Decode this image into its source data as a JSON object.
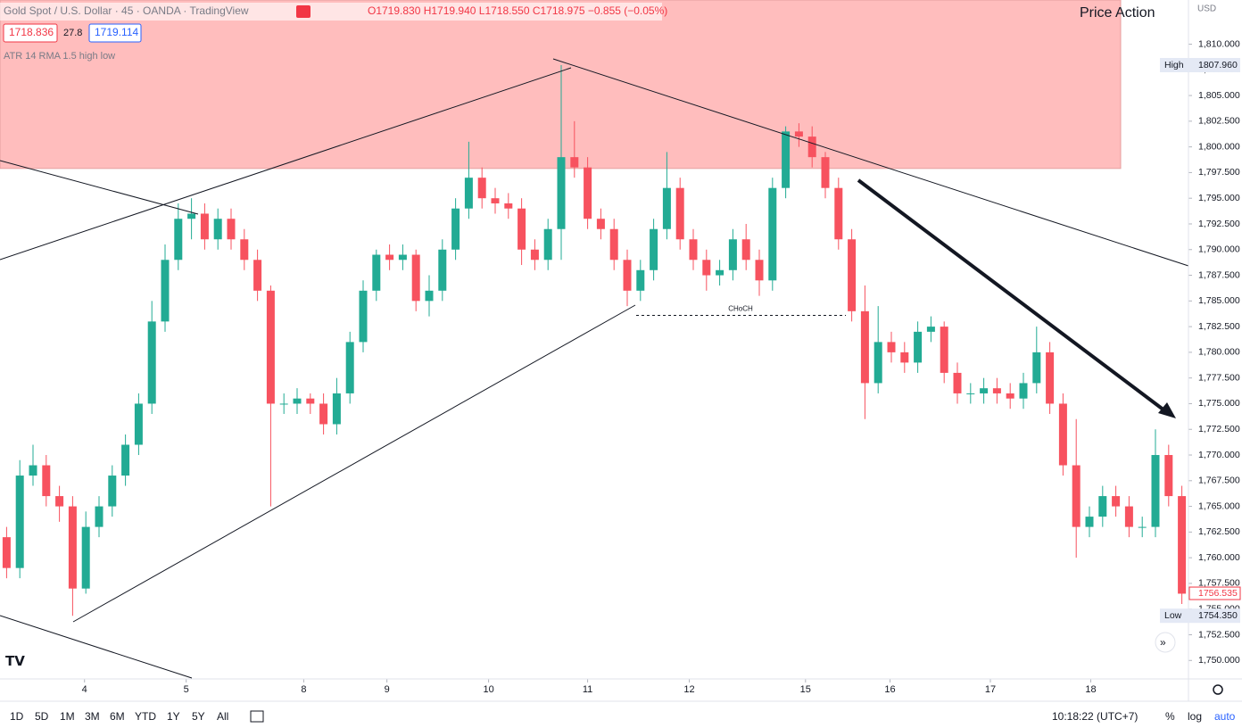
{
  "header": {
    "symbol": "Gold Spot / U.S. Dollar · 45 · OANDA · TradingView",
    "ohlc": "O1719.830 H1719.940 L1718.550 C1718.975 −0.855 (−0.05%)",
    "bid": "1718.836",
    "spread": "27.8",
    "ask": "1719.114",
    "indicator": "ATR 14 RMA 1.5 high low"
  },
  "chart_data": {
    "type": "candlestick",
    "title": "Price Action",
    "currency": "USD",
    "up_color": "#22ab94",
    "down_color": "#f7525f",
    "zone_color": "#ffbdbd",
    "open": [
      1762,
      1759,
      1768,
      1769,
      1766,
      1765,
      1757,
      1763,
      1765,
      1768,
      1771,
      1775,
      1783,
      1789,
      1793,
      1793.5,
      1791,
      1793,
      1791,
      1789,
      1786,
      1775,
      1775,
      1775.5,
      1775,
      1773,
      1776,
      1781,
      1786,
      1789.5,
      1789,
      1789.5,
      1785,
      1786,
      1790,
      1794,
      1797,
      1795,
      1794.5,
      1794,
      1790,
      1789,
      1792,
      1799,
      1798,
      1793,
      1792,
      1789,
      1786,
      1788,
      1792,
      1796,
      1791,
      1789,
      1787.5,
      1788,
      1791,
      1789,
      1787,
      1796,
      1801.5,
      1801,
      1799,
      1796,
      1791,
      1784,
      1777,
      1781,
      1780,
      1779,
      1782,
      1782.5,
      1778,
      1776,
      1776,
      1776.5,
      1776,
      1775.5,
      1777,
      1780,
      1775,
      1769,
      1763,
      1764,
      1766,
      1765,
      1763,
      1763,
      1770,
      1766
    ],
    "high": [
      1763,
      1769.5,
      1771,
      1770,
      1767,
      1766,
      1764.5,
      1766,
      1769,
      1772,
      1776,
      1785,
      1790.5,
      1794.5,
      1795,
      1794.5,
      1794,
      1794,
      1792,
      1790,
      1786.5,
      1776,
      1776.5,
      1776,
      1776,
      1777.5,
      1782,
      1787,
      1790,
      1790.5,
      1790.5,
      1790,
      1787.5,
      1791,
      1795,
      1800.5,
      1798,
      1796,
      1795.5,
      1795,
      1791,
      1793,
      1807.96,
      1802.5,
      1799,
      1794,
      1793,
      1790,
      1789,
      1793,
      1799.5,
      1797,
      1792,
      1790,
      1789,
      1792,
      1792.5,
      1790,
      1797,
      1802,
      1802.3,
      1802,
      1799.5,
      1797,
      1792,
      1786.5,
      1784.5,
      1782,
      1781,
      1783,
      1783.5,
      1783,
      1779,
      1777,
      1777.5,
      1777.5,
      1777,
      1778,
      1782.5,
      1781,
      1776,
      1773.5,
      1765,
      1767,
      1767,
      1766,
      1764,
      1772.5,
      1771,
      1767
    ],
    "low": [
      1758,
      1758,
      1767,
      1765,
      1763.5,
      1754.35,
      1756.5,
      1762,
      1764,
      1767,
      1770,
      1774,
      1782,
      1788,
      1791,
      1790,
      1790,
      1790,
      1788,
      1785,
      1765,
      1774,
      1774,
      1774,
      1772,
      1772,
      1775,
      1780,
      1785,
      1788,
      1788,
      1784,
      1783.5,
      1785,
      1789,
      1793,
      1794,
      1793.5,
      1793,
      1788.5,
      1788,
      1788,
      1789,
      1797,
      1792,
      1791,
      1788,
      1784.5,
      1785,
      1787,
      1791,
      1790,
      1788,
      1786,
      1786.5,
      1787,
      1788,
      1785.5,
      1786,
      1795,
      1800,
      1798,
      1795,
      1790,
      1783,
      1773.5,
      1776,
      1779,
      1778,
      1778,
      1781,
      1777,
      1775,
      1775,
      1775,
      1775,
      1774.5,
      1774.5,
      1776,
      1774,
      1768,
      1760,
      1762,
      1763,
      1764,
      1762,
      1762,
      1762,
      1765,
      1755.5
    ],
    "close": [
      1759,
      1768,
      1769,
      1766,
      1765,
      1757,
      1763,
      1765,
      1768,
      1771,
      1775,
      1783,
      1789,
      1793,
      1793.5,
      1791,
      1793,
      1791,
      1789,
      1786,
      1775,
      1775,
      1775.5,
      1775,
      1773,
      1776,
      1781,
      1786,
      1789.5,
      1789,
      1789.5,
      1785,
      1786,
      1790,
      1794,
      1797,
      1795,
      1794.5,
      1794,
      1790,
      1789,
      1792,
      1799,
      1798,
      1793,
      1792,
      1789,
      1786,
      1788,
      1792,
      1796,
      1791,
      1789,
      1787.5,
      1788,
      1791,
      1789,
      1787,
      1796,
      1801.5,
      1801,
      1799,
      1796,
      1791,
      1784,
      1777,
      1781,
      1780,
      1779,
      1782,
      1782.5,
      1778,
      1776,
      1776,
      1776.5,
      1776,
      1775.5,
      1777,
      1780,
      1775,
      1769,
      1763,
      1764,
      1766,
      1765,
      1763,
      1763,
      1770,
      1766,
      1756.5
    ],
    "ylim": [
      1748.2,
      1814.3
    ],
    "yticks": [
      {
        "value": 1750,
        "label": "1,750.000"
      },
      {
        "value": 1752.5,
        "label": "1,752.500"
      },
      {
        "value": 1755,
        "label": "1,755.000"
      },
      {
        "value": 1757.5,
        "label": "1,757.500"
      },
      {
        "value": 1760,
        "label": "1,760.000"
      },
      {
        "value": 1762.5,
        "label": "1,762.500"
      },
      {
        "value": 1765,
        "label": "1,765.000"
      },
      {
        "value": 1767.5,
        "label": "1,767.500"
      },
      {
        "value": 1770,
        "label": "1,770.000"
      },
      {
        "value": 1772.5,
        "label": "1,772.500"
      },
      {
        "value": 1775,
        "label": "1,775.000"
      },
      {
        "value": 1777.5,
        "label": "1,777.500"
      },
      {
        "value": 1780,
        "label": "1,780.000"
      },
      {
        "value": 1782.5,
        "label": "1,782.500"
      },
      {
        "value": 1785,
        "label": "1,785.000"
      },
      {
        "value": 1787.5,
        "label": "1,787.500"
      },
      {
        "value": 1790,
        "label": "1,790.000"
      },
      {
        "value": 1792.5,
        "label": "1,792.500"
      },
      {
        "value": 1795,
        "label": "1,795.000"
      },
      {
        "value": 1797.5,
        "label": "1,797.500"
      },
      {
        "value": 1800,
        "label": "1,800.000"
      },
      {
        "value": 1802.5,
        "label": "1,802.500"
      },
      {
        "value": 1805,
        "label": "1,805.000"
      },
      {
        "value": 1807.5,
        "label": "1,807.500"
      },
      {
        "value": 1810,
        "label": "1,810.000"
      }
    ],
    "xticks": [
      {
        "value": 5.9,
        "label": "4"
      },
      {
        "value": 13.6,
        "label": "5"
      },
      {
        "value": 22.5,
        "label": "8"
      },
      {
        "value": 28.8,
        "label": "9"
      },
      {
        "value": 36.5,
        "label": "10"
      },
      {
        "value": 44,
        "label": "11"
      },
      {
        "value": 51.7,
        "label": "12"
      },
      {
        "value": 60.5,
        "label": "15"
      },
      {
        "value": 66.9,
        "label": "16"
      },
      {
        "value": 74.5,
        "label": "17"
      },
      {
        "value": 82.1,
        "label": "18"
      }
    ],
    "zone": [
      1797.9,
      1814.3
    ],
    "annotation": {
      "text": "CHoCH",
      "value": 1783.6
    },
    "price_markers": [
      {
        "name": "High",
        "value": 1807.96,
        "value_label": "1807.960"
      },
      {
        "name": "Low",
        "value": 1754.35,
        "value_label": "1754.350"
      },
      {
        "value": 1756.535,
        "value_label": "1756.535",
        "color": "#f23645"
      }
    ]
  },
  "toolbar": {
    "ranges": [
      "1D",
      "5D",
      "1M",
      "3M",
      "6M",
      "YTD",
      "1Y",
      "5Y",
      "All"
    ],
    "time": "10:18:22 (UTC+7)",
    "scale_options": [
      "%",
      "log",
      "auto"
    ]
  }
}
